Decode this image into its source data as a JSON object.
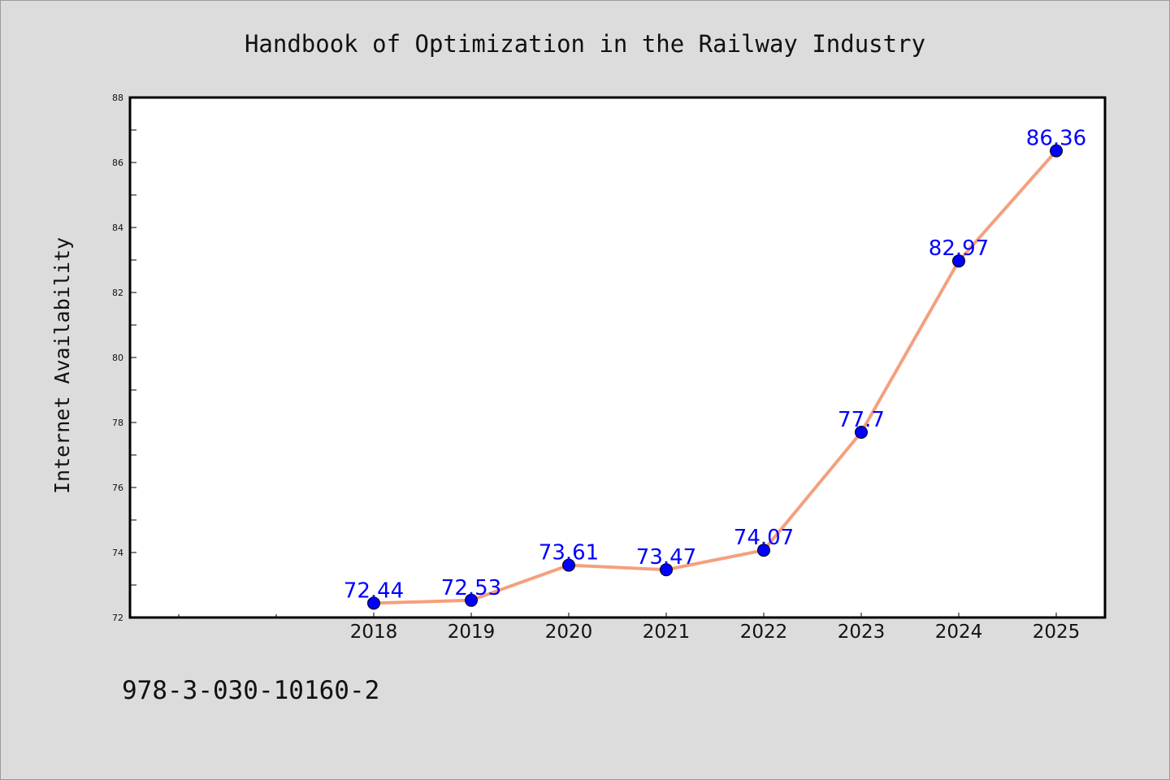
{
  "footer": {
    "isbn": "978-3-030-10160-2"
  },
  "colors": {
    "background": "#dcdcdc",
    "plot_background": "#ffffff",
    "line": "#f4a07e",
    "marker": "#0000ff",
    "data_label": "#0000ff",
    "axis": "#000000"
  },
  "chart_data": {
    "type": "line",
    "title": "Handbook of Optimization in the Railway Industry",
    "xlabel": "",
    "ylabel": "Internet Availability",
    "categories": [
      "2018",
      "2019",
      "2020",
      "2021",
      "2022",
      "2023",
      "2024",
      "2025"
    ],
    "series": [
      {
        "values": [
          72.44,
          72.53,
          73.61,
          73.47,
          74.07,
          77.7,
          82.97,
          86.36
        ],
        "data_labels": [
          "72.44",
          "72.53",
          "73.61",
          "73.47",
          "74.07",
          "77.7",
          "82.97",
          "86.36"
        ]
      }
    ],
    "ylim": [
      72,
      88
    ],
    "yticks": [
      "72",
      "74",
      "76",
      "78",
      "80",
      "82",
      "84",
      "86",
      "88"
    ],
    "grid": false,
    "legend": "none"
  }
}
